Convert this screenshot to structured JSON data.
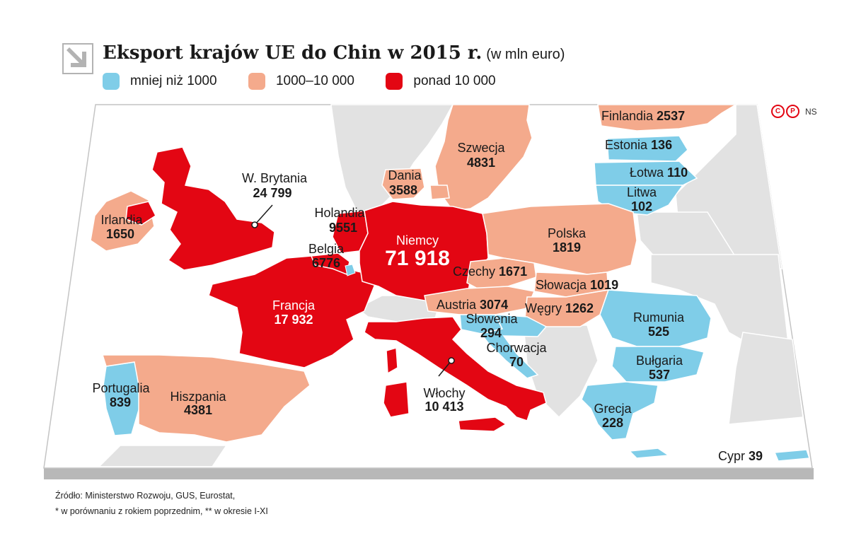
{
  "title": {
    "main": "Eksport krajów UE do Chin w 2015 r.",
    "unit": "(w mln euro)"
  },
  "legend": [
    {
      "label": "mniej niż 1000",
      "color": "#7fcde8"
    },
    {
      "label": "1000–10 000",
      "color": "#f4aa8c"
    },
    {
      "label": "ponad 10 000",
      "color": "#e30613"
    }
  ],
  "icons": {
    "title_arrow": "diagonal-arrow-icon",
    "copyright": "copyright-icon",
    "producer": "phonogram-icon"
  },
  "copyright": {
    "c": "C",
    "p": "P",
    "credit": "NS"
  },
  "countries": {
    "uk": {
      "name": "W. Brytania",
      "value": "24 799"
    },
    "ireland": {
      "name": "Irlandia",
      "value": "1650"
    },
    "netherlands": {
      "name": "Holandia",
      "value": "9551"
    },
    "belgium": {
      "name": "Belgia",
      "value": "6776"
    },
    "germany": {
      "name": "Niemcy",
      "value": "71 918"
    },
    "france": {
      "name": "Francja",
      "value": "17 932"
    },
    "denmark": {
      "name": "Dania",
      "value": "3588"
    },
    "sweden": {
      "name": "Szwecja",
      "value": "4831"
    },
    "finland": {
      "name": "Finlandia",
      "value": "2537"
    },
    "estonia": {
      "name": "Estonia",
      "value": "136"
    },
    "latvia": {
      "name": "Łotwa",
      "value": "110"
    },
    "lithuania": {
      "name": "Litwa",
      "value": "102"
    },
    "poland": {
      "name": "Polska",
      "value": "1819"
    },
    "czechia": {
      "name": "Czechy",
      "value": "1671"
    },
    "slovakia": {
      "name": "Słowacja",
      "value": "1019"
    },
    "austria": {
      "name": "Austria",
      "value": "3074"
    },
    "hungary": {
      "name": "Węgry",
      "value": "1262"
    },
    "slovenia": {
      "name": "Słowenia",
      "value": "294"
    },
    "croatia": {
      "name": "Chorwacja",
      "value": "70"
    },
    "romania": {
      "name": "Rumunia",
      "value": "525"
    },
    "bulgaria": {
      "name": "Bułgaria",
      "value": "537"
    },
    "greece": {
      "name": "Grecja",
      "value": "228"
    },
    "italy": {
      "name": "Włochy",
      "value": "10 413"
    },
    "spain": {
      "name": "Hiszpania",
      "value": "4381"
    },
    "portugal": {
      "name": "Portugalia",
      "value": "839"
    },
    "cyprus": {
      "name": "Cypr",
      "value": "39"
    },
    "luxembourg": {
      "value_bucket": "mniej niż 1000"
    }
  },
  "footer": {
    "line1": "Źródło: Ministerstwo Rozwoju, GUS, Eurostat,",
    "line2": "* w porównaniu z rokiem poprzednim, ** w okresie I-XI"
  }
}
